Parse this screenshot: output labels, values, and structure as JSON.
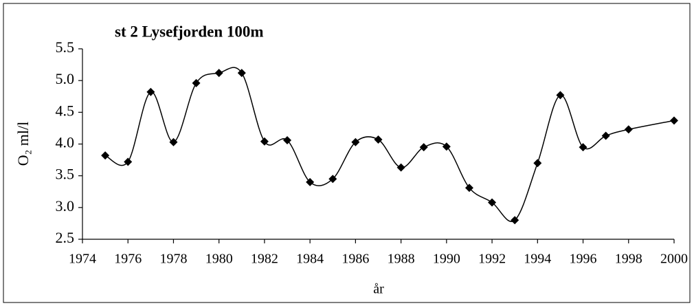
{
  "chart_data": {
    "type": "line",
    "title": "st 2 Lysefjorden 100m",
    "x_label": "år",
    "y_label": "O₂ ml/l",
    "x": [
      1975,
      1976,
      1977,
      1978,
      1979,
      1980,
      1981,
      1982,
      1983,
      1984,
      1985,
      1986,
      1987,
      1988,
      1989,
      1990,
      1991,
      1992,
      1993,
      1994,
      1995,
      1996,
      1997,
      1998,
      2000
    ],
    "series": [
      {
        "name": "O2",
        "color": "#000000",
        "values": [
          3.82,
          3.72,
          4.82,
          4.03,
          4.96,
          5.12,
          5.12,
          4.04,
          4.06,
          3.4,
          3.45,
          4.03,
          4.07,
          3.63,
          3.95,
          3.96,
          3.31,
          3.08,
          2.8,
          3.7,
          4.77,
          3.95,
          4.13,
          4.23,
          4.37
        ]
      }
    ],
    "xlim": [
      1974,
      2000
    ],
    "xticks": [
      1974,
      1976,
      1978,
      1980,
      1982,
      1984,
      1986,
      1988,
      1990,
      1992,
      1994,
      1996,
      1998,
      2000
    ],
    "ylim": [
      2.5,
      5.5
    ],
    "yticks": [
      2.5,
      {
        "value": 3,
        "label": "3.0"
      },
      3.5,
      {
        "value": 4,
        "label": "4.0"
      },
      4.5,
      {
        "value": 5,
        "label": "5.0"
      },
      5.5
    ],
    "grid": false,
    "smooth": true
  }
}
